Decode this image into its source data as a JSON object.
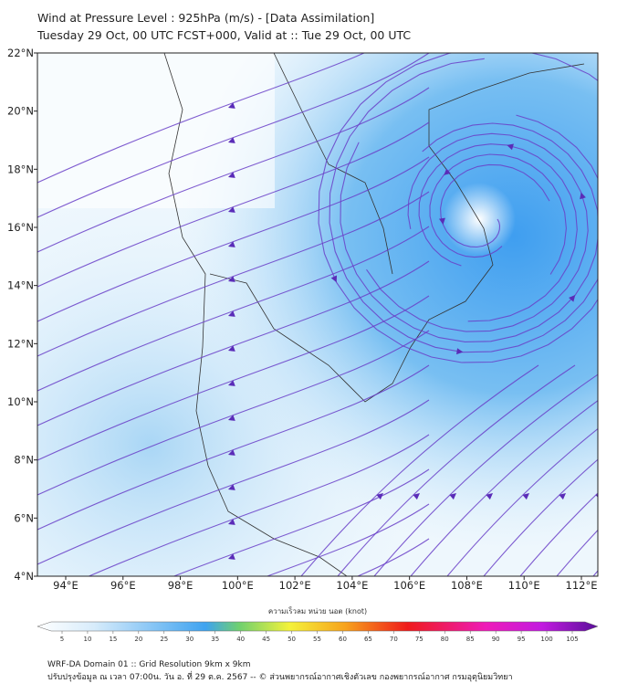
{
  "header": {
    "title": "Wind at Pressure Level : 925hPa (m/s) - [Data Assimilation]",
    "subtitle": "Tuesday 29 Oct, 00 UTC FCST+000, Valid at :: Tue 29 Oct, 00 UTC"
  },
  "map": {
    "lat_ticks": [
      {
        "value": 4,
        "label": "4°N"
      },
      {
        "value": 6,
        "label": "6°N"
      },
      {
        "value": 8,
        "label": "8°N"
      },
      {
        "value": 10,
        "label": "10°N"
      },
      {
        "value": 12,
        "label": "12°N"
      },
      {
        "value": 14,
        "label": "14°N"
      },
      {
        "value": 16,
        "label": "16°N"
      },
      {
        "value": 18,
        "label": "18°N"
      },
      {
        "value": 20,
        "label": "20°N"
      },
      {
        "value": 22,
        "label": "22°N"
      }
    ],
    "lon_ticks": [
      {
        "value": 94,
        "label": "94°E"
      },
      {
        "value": 96,
        "label": "96°E"
      },
      {
        "value": 98,
        "label": "98°E"
      },
      {
        "value": 100,
        "label": "100°E"
      },
      {
        "value": 102,
        "label": "102°E"
      },
      {
        "value": 104,
        "label": "104°E"
      },
      {
        "value": 106,
        "label": "106°E"
      },
      {
        "value": 108,
        "label": "108°E"
      },
      {
        "value": 110,
        "label": "110°E"
      },
      {
        "value": 112,
        "label": "112°E"
      }
    ]
  },
  "colorbar": {
    "label": "ความเร็วลม หน่วย นอต (knot)",
    "ticks": [
      5,
      10,
      15,
      20,
      25,
      30,
      35,
      40,
      45,
      50,
      55,
      60,
      65,
      70,
      75,
      80,
      85,
      90,
      95,
      100,
      105
    ]
  },
  "footer": {
    "line1": "WRF-DA Domain 01 :: Grid Resolution 9km x 9km",
    "line2": "ปรับปรุงข้อมูล ณ เวลา 07:00น. วัน อ. ที่ 29 ต.ค. 2567 -- © ส่วนพยากรณ์อากาศเชิงตัวเลข กองพยากรณ์อากาศ กรมอุตุนิยมวิทยา"
  }
}
